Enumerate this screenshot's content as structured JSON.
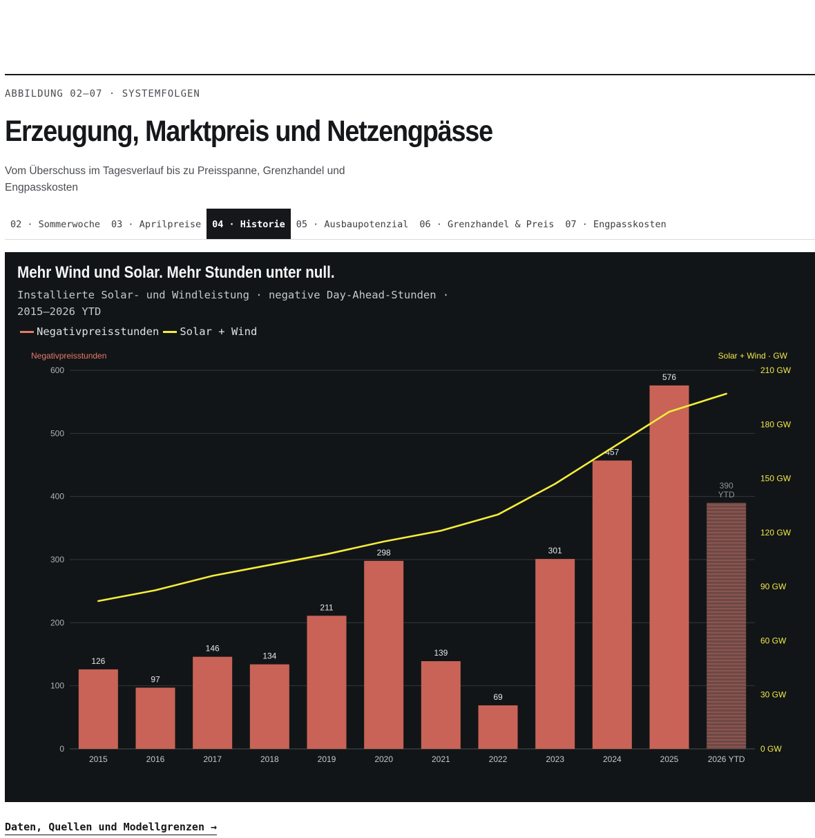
{
  "header": {
    "eyebrow": "ABBILDUNG 02–07 · SYSTEMFOLGEN",
    "title": "Erzeugung, Marktpreis und Netzengpässe",
    "subtitle": "Vom Überschuss im Tagesverlauf bis zu Preisspanne, Grenzhandel und Engpasskosten"
  },
  "tabs": [
    {
      "label": "02 · Sommerwoche",
      "active": false
    },
    {
      "label": "03 · Aprilpreise",
      "active": false
    },
    {
      "label": "04 · Historie",
      "active": true
    },
    {
      "label": "05 · Ausbaupotenzial",
      "active": false
    },
    {
      "label": "06 · Grenzhandel & Preis",
      "active": false
    },
    {
      "label": "07 · Engpasskosten",
      "active": false
    }
  ],
  "panel": {
    "title": "Mehr Wind und Solar. Mehr Stunden unter null.",
    "subtitle": "Installierte Solar- und Windleistung · negative Day-Ahead-Stunden · 2015–2026 YTD"
  },
  "colors": {
    "bar": "#c96357",
    "line": "#f5ed3a",
    "left_axis_label": "#e6796b",
    "right_axis_label": "#f0e84a",
    "background": "#121517"
  },
  "chart_data": {
    "type": "bar",
    "categories": [
      "2015",
      "2016",
      "2017",
      "2018",
      "2019",
      "2020",
      "2021",
      "2022",
      "2023",
      "2024",
      "2025",
      "2026 YTD"
    ],
    "series": [
      {
        "name": "Negativpreisstunden",
        "type": "bar",
        "axis": "left",
        "values": [
          126,
          97,
          146,
          134,
          211,
          298,
          139,
          69,
          301,
          457,
          576,
          390
        ],
        "data_labels": [
          "126",
          "97",
          "146",
          "134",
          "211",
          "298",
          "139",
          "69",
          "301",
          "457",
          "576",
          "390"
        ],
        "partial_year_note": "YTD"
      },
      {
        "name": "Solar + Wind",
        "type": "line",
        "axis": "right",
        "values": [
          82,
          88,
          96,
          102,
          108,
          115,
          121,
          130,
          147,
          167,
          187,
          197
        ]
      }
    ],
    "y_left": {
      "label": "Negativpreisstunden",
      "ticks": [
        0,
        100,
        200,
        300,
        400,
        500,
        600
      ],
      "ylim": [
        0,
        600
      ]
    },
    "y_right": {
      "label": "Solar + Wind · GW",
      "ticks": [
        0,
        30,
        60,
        90,
        120,
        150,
        180,
        210
      ],
      "tick_suffix": " GW",
      "ylim": [
        0,
        210
      ]
    },
    "grid": true,
    "legend_placement": "top-left"
  },
  "footer": {
    "link_label": "Daten, Quellen und Modellgrenzen →"
  }
}
